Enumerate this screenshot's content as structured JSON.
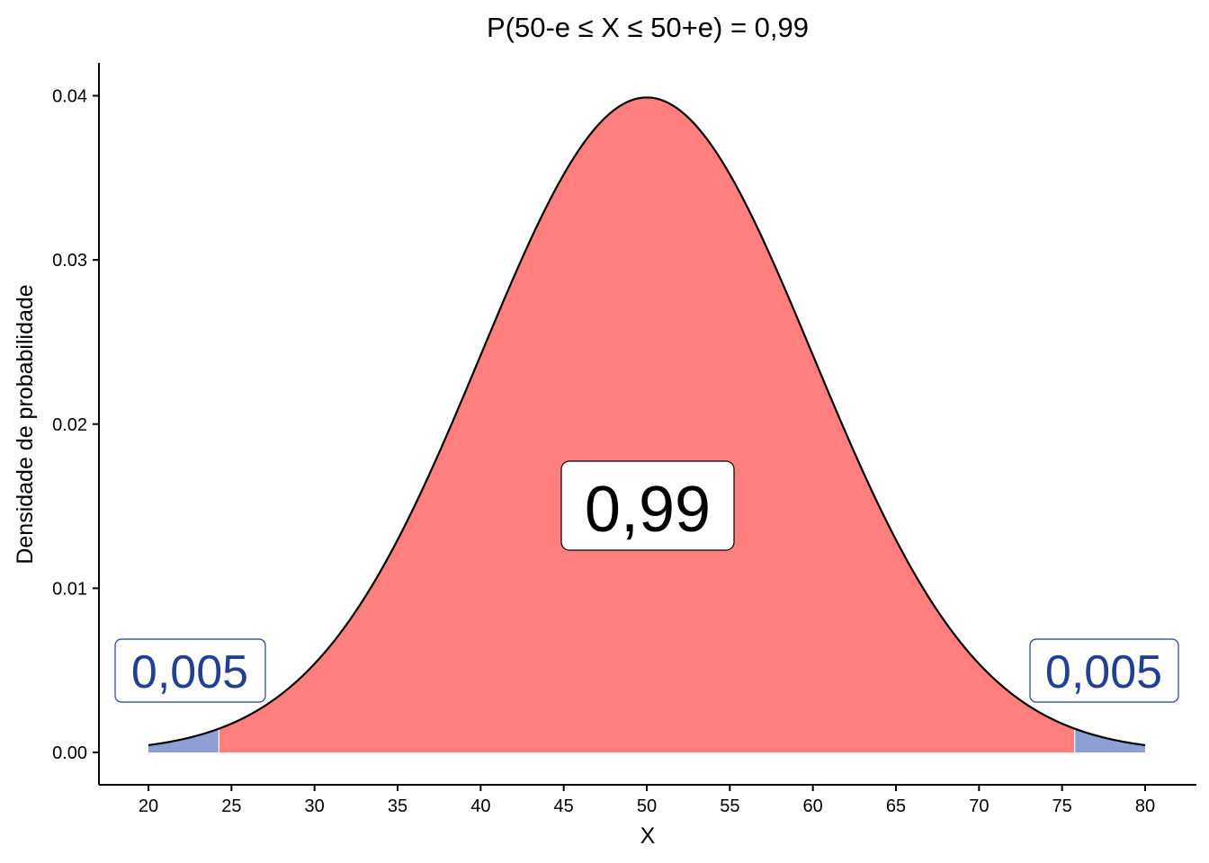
{
  "chart_data": {
    "type": "area",
    "title": "P(50-e ≤  X ≤  50+e) = 0,99",
    "xlabel": "X",
    "ylabel": "Densidade de probabilidade",
    "distribution": {
      "mean": 50,
      "sd": 10
    },
    "xlim": [
      20,
      80
    ],
    "ylim": [
      0,
      0.04
    ],
    "x_ticks": [
      20,
      25,
      30,
      35,
      40,
      45,
      50,
      55,
      60,
      65,
      70,
      75,
      80
    ],
    "y_ticks": [
      0.0,
      0.01,
      0.02,
      0.03,
      0.04
    ],
    "y_tick_labels": [
      "0.00",
      "0.01",
      "0.02",
      "0.03",
      "0.04"
    ],
    "regions": [
      {
        "name": "left-tail",
        "from": 20,
        "to": 24.24,
        "probability_label": "0,005",
        "color": "#8e9fd3"
      },
      {
        "name": "center",
        "from": 24.24,
        "to": 75.76,
        "probability_label": "0,99",
        "color": "#ff7f7f"
      },
      {
        "name": "right-tail",
        "from": 75.76,
        "to": 80,
        "probability_label": "0,005",
        "color": "#8e9fd3"
      }
    ],
    "label_color_tail": "#233f94",
    "curve_color": "#000000",
    "grid": false
  }
}
